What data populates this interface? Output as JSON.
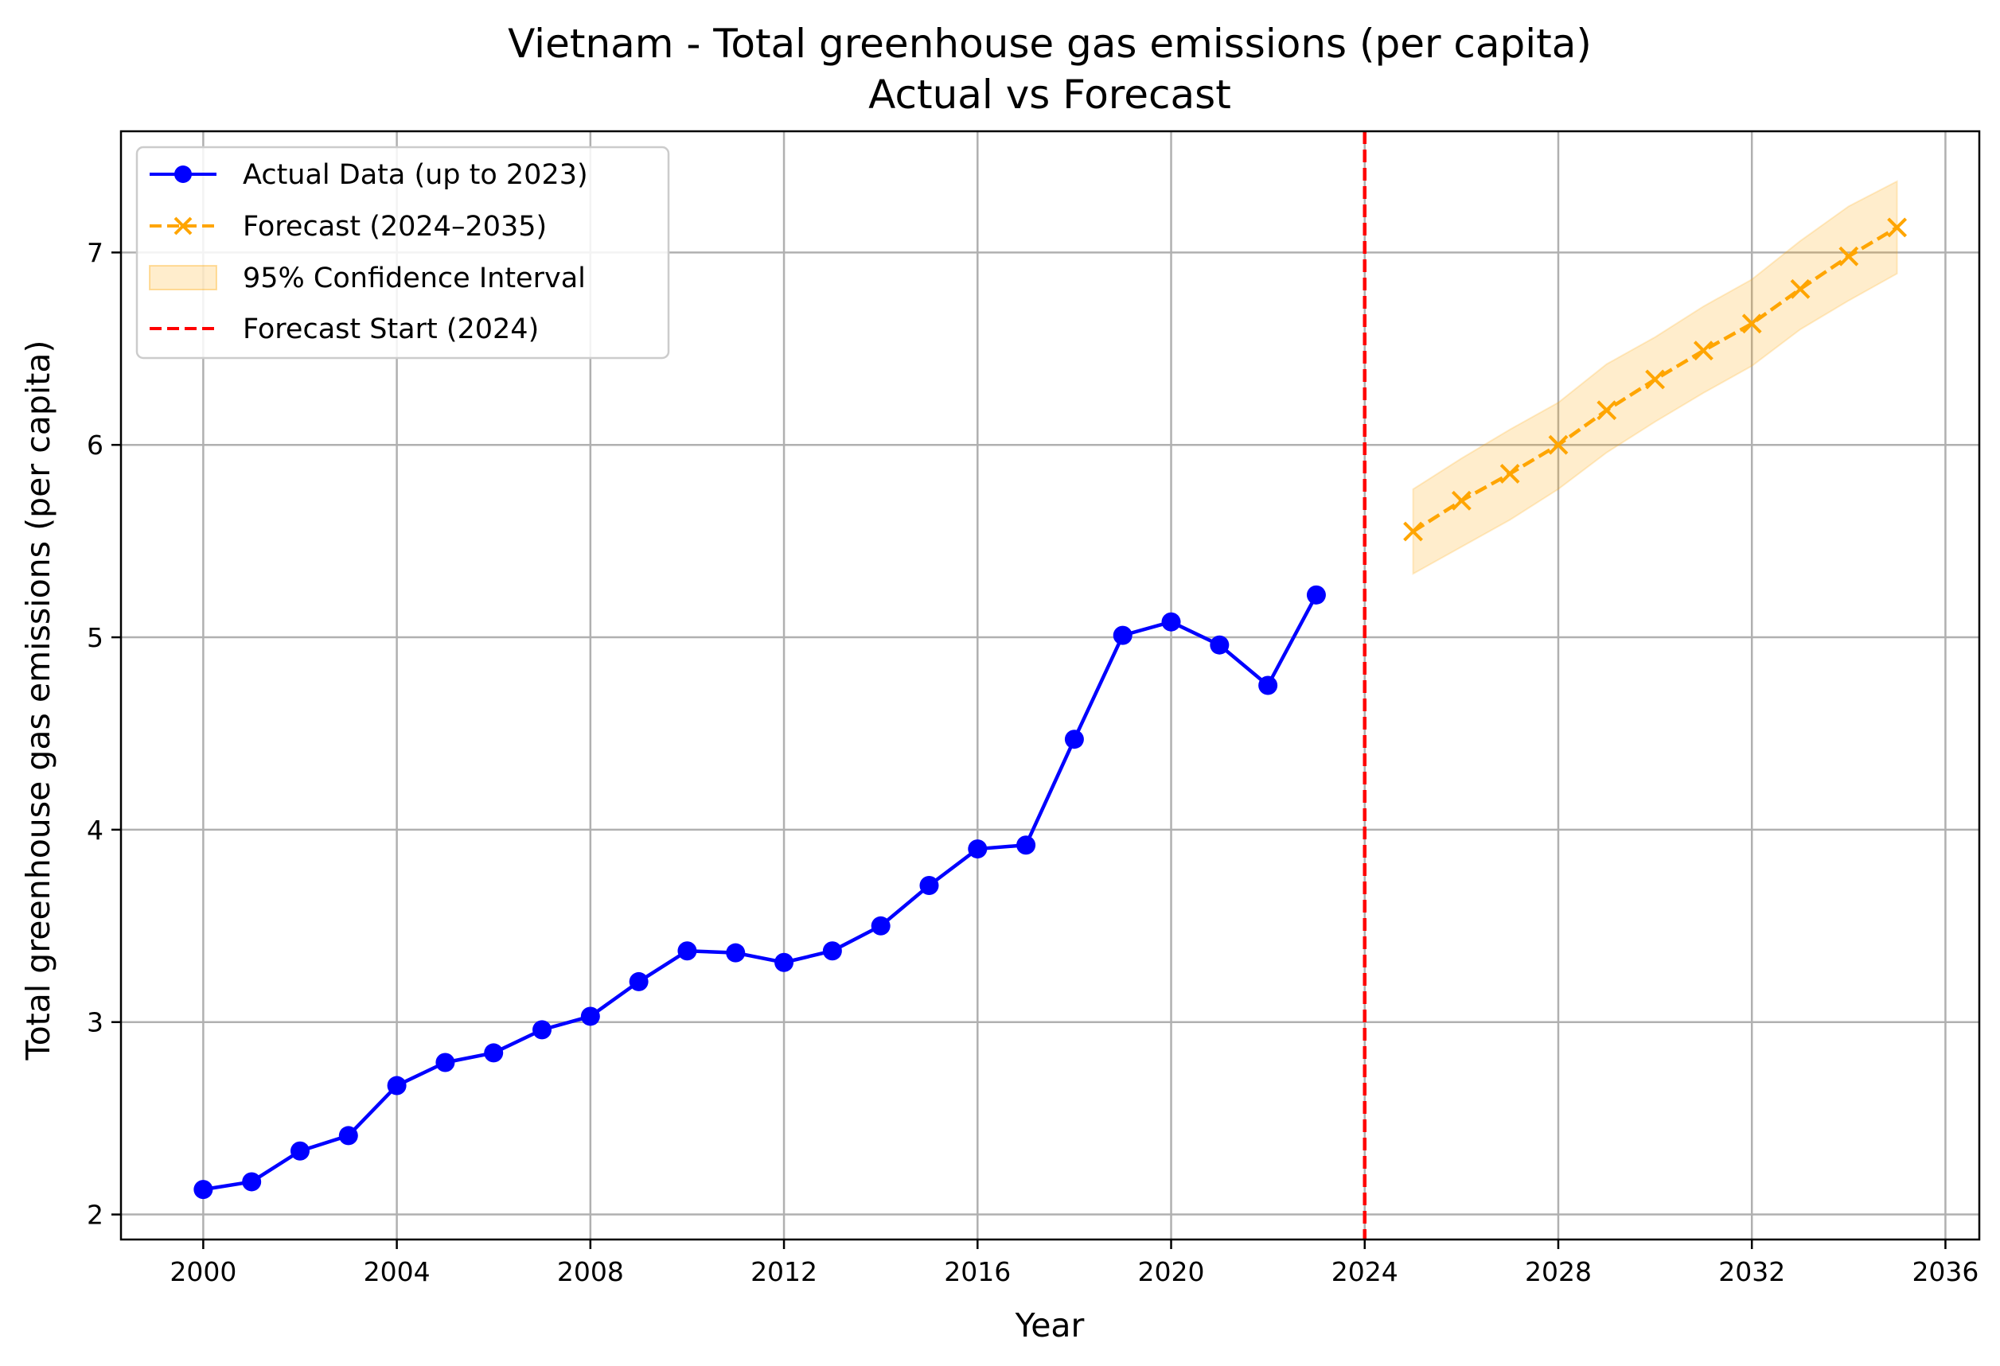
{
  "chart_data": {
    "type": "line",
    "title": "Vietnam - Total greenhouse gas emissions (per capita)",
    "subtitle": "Actual vs Forecast",
    "xlabel": "Year",
    "ylabel": "Total greenhouse gas emissions (per capita)",
    "xlim": [
      1998.3,
      2036.7
    ],
    "ylim": [
      1.87,
      7.63
    ],
    "xticks": [
      2000,
      2004,
      2008,
      2012,
      2016,
      2020,
      2024,
      2028,
      2032,
      2036
    ],
    "yticks": [
      2,
      3,
      4,
      5,
      6,
      7
    ],
    "grid": true,
    "legend_position": "upper-left",
    "colors": {
      "actual": "#0000ff",
      "forecast": "#ffa500",
      "ci": "#ffa500",
      "forecast_start": "#ff0000"
    },
    "series": [
      {
        "name": "Actual Data (up to 2023)",
        "x": [
          2000,
          2001,
          2002,
          2003,
          2004,
          2005,
          2006,
          2007,
          2008,
          2009,
          2010,
          2011,
          2012,
          2013,
          2014,
          2015,
          2016,
          2017,
          2018,
          2019,
          2020,
          2021,
          2022,
          2023
        ],
        "y": [
          2.13,
          2.17,
          2.33,
          2.41,
          2.67,
          2.79,
          2.84,
          2.96,
          3.03,
          3.21,
          3.37,
          3.36,
          3.31,
          3.37,
          3.5,
          3.71,
          3.9,
          3.92,
          4.47,
          5.01,
          5.08,
          4.96,
          4.75,
          5.22
        ]
      },
      {
        "name": "Forecast (2024–2035)",
        "x": [
          2025,
          2026,
          2027,
          2028,
          2029,
          2030,
          2031,
          2032,
          2033,
          2034,
          2035
        ],
        "y": [
          5.55,
          5.71,
          5.85,
          6.0,
          6.18,
          6.34,
          6.49,
          6.63,
          6.81,
          6.98,
          7.13
        ]
      }
    ],
    "confidence_interval": {
      "name": "95% Confidence Interval",
      "x": [
        2025,
        2026,
        2027,
        2028,
        2029,
        2030,
        2031,
        2032,
        2033,
        2034,
        2035
      ],
      "lower": [
        5.33,
        5.47,
        5.61,
        5.77,
        5.96,
        6.12,
        6.27,
        6.41,
        6.6,
        6.75,
        6.89
      ],
      "upper": [
        5.77,
        5.93,
        6.08,
        6.22,
        6.42,
        6.56,
        6.72,
        6.86,
        7.06,
        7.24,
        7.37
      ]
    },
    "vline": {
      "name": "Forecast Start (2024)",
      "x": 2024
    }
  }
}
